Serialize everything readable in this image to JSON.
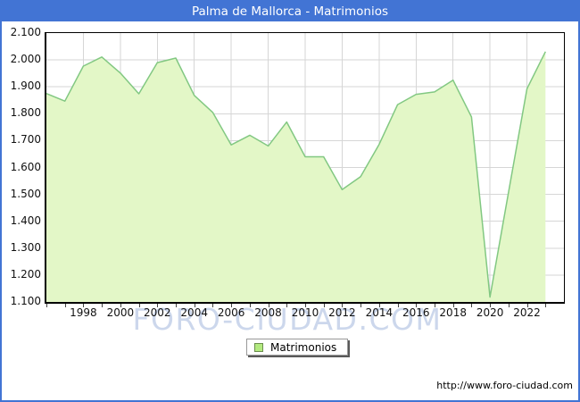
{
  "window": {
    "title": "Palma de Mallorca - Matrimonios"
  },
  "colors": {
    "titlebar_blue": "#4274d4",
    "border_blue": "#4274d4",
    "area_fill": "#e3f7c7",
    "line_green": "#82c882",
    "grid_gray": "#d6d6d6",
    "watermark_blue": "#ccd7ec",
    "legend_swatch": "#b3ea80"
  },
  "watermark": {
    "text": "FORO-CIUDAD.COM"
  },
  "legend": {
    "label": "Matrimonios"
  },
  "footer": {
    "url": "http://www.foro-ciudad.com"
  },
  "chart_data": {
    "type": "area",
    "title": "Palma de Mallorca - Matrimonios",
    "series_name": "Matrimonios",
    "x": [
      1996,
      1997,
      1998,
      1999,
      2000,
      2001,
      2002,
      2003,
      2004,
      2005,
      2006,
      2007,
      2008,
      2009,
      2010,
      2011,
      2012,
      2013,
      2014,
      2015,
      2016,
      2017,
      2018,
      2019,
      2020,
      2021,
      2022,
      2023
    ],
    "values": [
      1875,
      1847,
      1977,
      2011,
      1951,
      1874,
      1990,
      2007,
      1868,
      1805,
      1684,
      1720,
      1680,
      1769,
      1640,
      1640,
      1518,
      1566,
      1686,
      1834,
      1872,
      1881,
      1925,
      1788,
      1118,
      1508,
      1893,
      2031
    ],
    "ylim": [
      1100,
      2100
    ],
    "ytick_step": 100,
    "ytick_labels": [
      "2.100",
      "2.000",
      "1.900",
      "1.800",
      "1.700",
      "1.600",
      "1.500",
      "1.400",
      "1.300",
      "1.200",
      "1.100"
    ],
    "xticks": [
      1998,
      2000,
      2002,
      2004,
      2006,
      2008,
      2010,
      2012,
      2014,
      2016,
      2018,
      2020,
      2022
    ],
    "xtick_labels": [
      "1998",
      "2000",
      "2002",
      "2004",
      "2006",
      "2008",
      "2010",
      "2012",
      "2014",
      "2016",
      "2018",
      "2020",
      "2022"
    ],
    "grid": true,
    "legend_position": "bottom"
  }
}
